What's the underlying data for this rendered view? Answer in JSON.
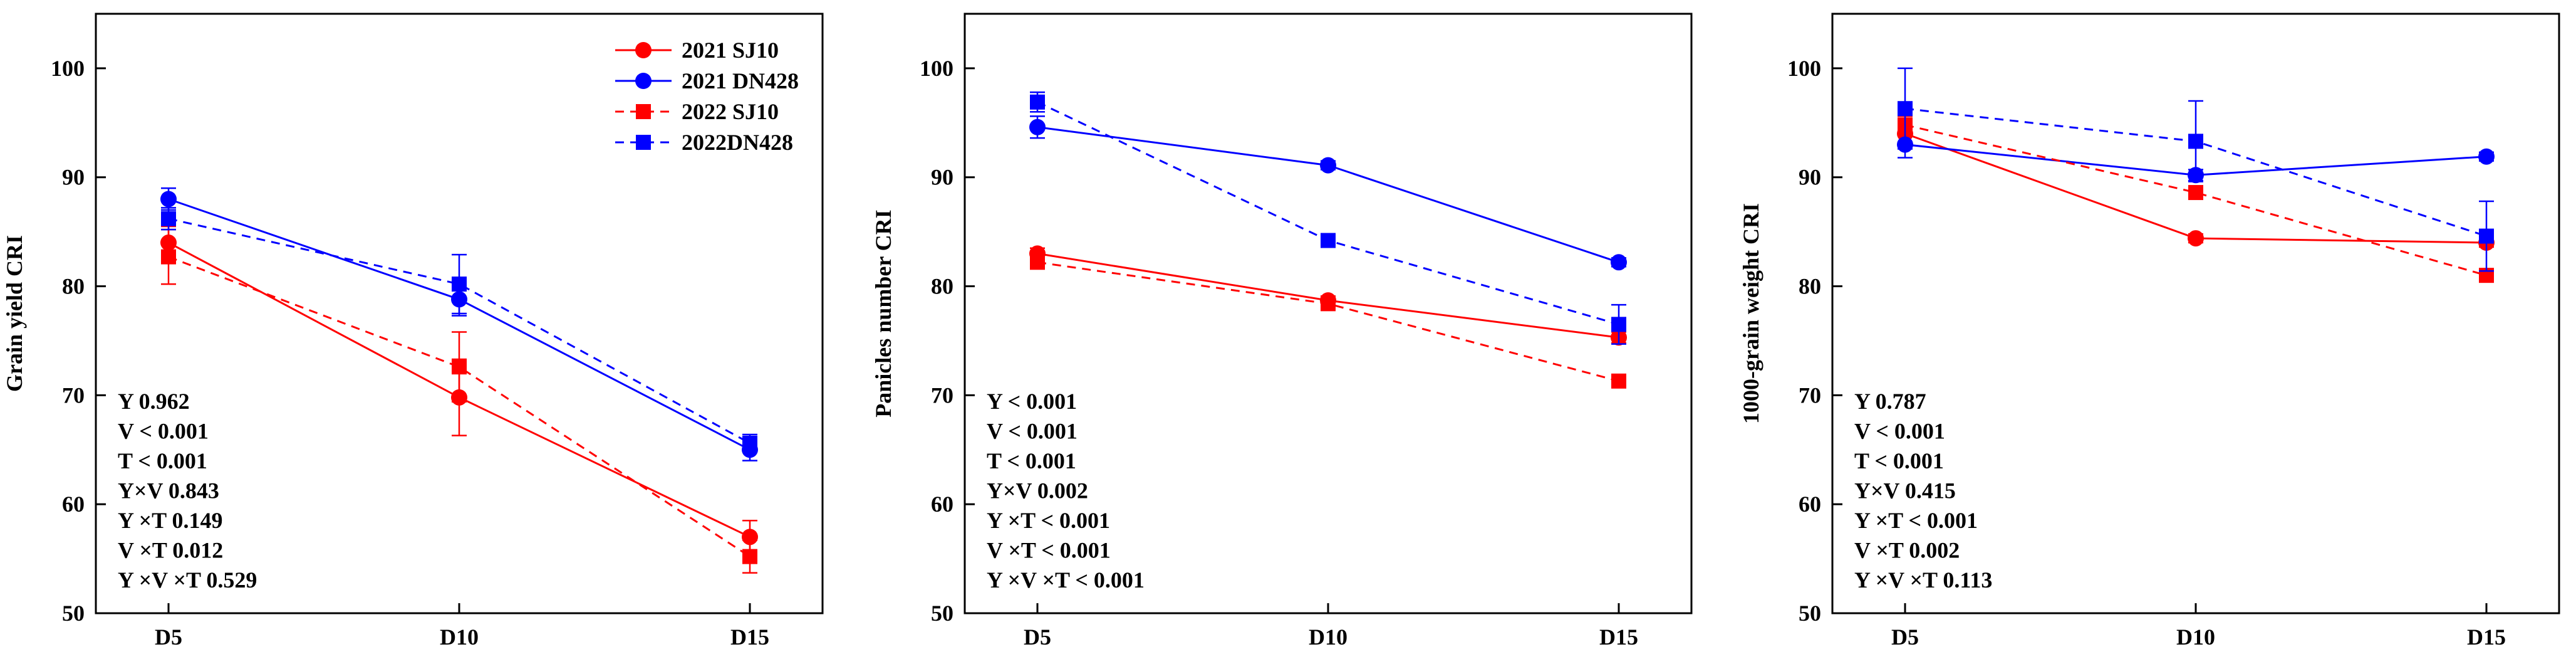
{
  "chart_data": [
    {
      "type": "line",
      "ylabel": "Grain yield CRI",
      "xlabel": "",
      "categories": [
        "D5",
        "D10",
        "D15"
      ],
      "ylim": [
        50,
        105
      ],
      "yticks": [
        50,
        60,
        70,
        80,
        90,
        100
      ],
      "show_legend": true,
      "series": [
        {
          "name": "2021 SJ10",
          "color": "#ff0000",
          "dash": "solid",
          "marker": "circle",
          "values": [
            84.0,
            69.8,
            57.0
          ],
          "errors": [
            1.5,
            3.5,
            1.5
          ]
        },
        {
          "name": "2021 DN428",
          "color": "#0000ff",
          "dash": "solid",
          "marker": "circle",
          "values": [
            88.0,
            78.8,
            65.0
          ],
          "errors": [
            1.0,
            1.5,
            1.0
          ]
        },
        {
          "name": "2022 SJ10",
          "color": "#ff0000",
          "dash": "dashed",
          "marker": "square",
          "values": [
            82.7,
            72.6,
            55.2
          ],
          "errors": [
            2.5,
            3.2,
            1.5
          ]
        },
        {
          "name": "2022DN428",
          "color": "#0000ff",
          "dash": "dashed",
          "marker": "square",
          "values": [
            86.2,
            80.2,
            65.6
          ],
          "errors": [
            1.0,
            2.7,
            0.8
          ]
        }
      ],
      "stats": [
        "Y 0.962",
        "V < 0.001",
        "T < 0.001",
        "Y×V 0.843",
        "Y ×T 0.149",
        "V ×T 0.012",
        "Y ×V ×T 0.529"
      ]
    },
    {
      "type": "line",
      "ylabel": "Panicles number CRI",
      "xlabel": "",
      "categories": [
        "D5",
        "D10",
        "D15"
      ],
      "ylim": [
        50,
        105
      ],
      "yticks": [
        50,
        60,
        70,
        80,
        90,
        100
      ],
      "show_legend": false,
      "series": [
        {
          "name": "2021 SJ10",
          "color": "#ff0000",
          "dash": "solid",
          "marker": "circle",
          "values": [
            83.0,
            78.7,
            75.3
          ],
          "errors": [
            0.5,
            0.4,
            0.5
          ]
        },
        {
          "name": "2021 DN428",
          "color": "#0000ff",
          "dash": "solid",
          "marker": "circle",
          "values": [
            94.6,
            91.1,
            82.2
          ],
          "errors": [
            1.0,
            0.4,
            0.4
          ]
        },
        {
          "name": "2022 SJ10",
          "color": "#ff0000",
          "dash": "dashed",
          "marker": "square",
          "values": [
            82.2,
            78.4,
            71.3
          ],
          "errors": [
            0.5,
            0.4,
            0.4
          ]
        },
        {
          "name": "2022DN428",
          "color": "#0000ff",
          "dash": "dashed",
          "marker": "square",
          "values": [
            96.9,
            84.2,
            76.5
          ],
          "errors": [
            0.9,
            0.4,
            1.8
          ]
        }
      ],
      "stats": [
        "Y < 0.001",
        "V < 0.001",
        "T < 0.001",
        "Y×V 0.002",
        "Y ×T < 0.001",
        "V ×T < 0.001",
        "Y ×V ×T < 0.001"
      ]
    },
    {
      "type": "line",
      "ylabel": "1000-grain weight CRI",
      "xlabel": "",
      "categories": [
        "D5",
        "D10",
        "D15"
      ],
      "ylim": [
        50,
        105
      ],
      "yticks": [
        50,
        60,
        70,
        80,
        90,
        100
      ],
      "show_legend": false,
      "series": [
        {
          "name": "2021 SJ10",
          "color": "#ff0000",
          "dash": "solid",
          "marker": "circle",
          "values": [
            94.0,
            84.4,
            84.0
          ],
          "errors": [
            1.0,
            0.4,
            0.4
          ]
        },
        {
          "name": "2021 DN428",
          "color": "#0000ff",
          "dash": "solid",
          "marker": "circle",
          "values": [
            93.0,
            90.2,
            91.9
          ],
          "errors": [
            1.2,
            0.5,
            0.4
          ]
        },
        {
          "name": "2022 SJ10",
          "color": "#ff0000",
          "dash": "dashed",
          "marker": "square",
          "values": [
            94.8,
            88.6,
            81.0
          ],
          "errors": [
            0.8,
            0.4,
            0.4
          ]
        },
        {
          "name": "2022DN428",
          "color": "#0000ff",
          "dash": "dashed",
          "marker": "square",
          "values": [
            96.3,
            93.3,
            84.6
          ],
          "errors": [
            3.7,
            3.7,
            3.2
          ]
        }
      ],
      "stats": [
        "Y 0.787",
        "V < 0.001",
        "T < 0.001",
        "Y×V 0.415",
        "Y ×T < 0.001",
        "V ×T 0.002",
        "Y ×V ×T 0.113"
      ]
    }
  ]
}
